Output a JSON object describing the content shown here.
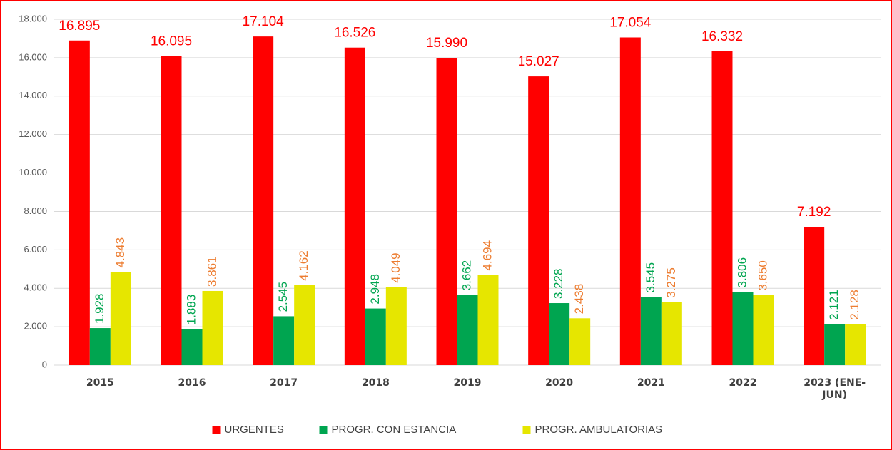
{
  "chart_data": {
    "type": "bar",
    "categories": [
      "2015",
      "2016",
      "2017",
      "2018",
      "2019",
      "2020",
      "2021",
      "2022",
      "2023 (ENE-JUN)"
    ],
    "series": [
      {
        "name": "URGENTES",
        "color": "#ff0000",
        "label_color": "#ff0000",
        "values": [
          16895,
          16095,
          17104,
          16526,
          15990,
          15027,
          17054,
          16332,
          7192
        ],
        "value_labels": [
          "16.895",
          "16.095",
          "17.104",
          "16.526",
          "15.990",
          "15.027",
          "17.054",
          "16.332",
          "7.192"
        ]
      },
      {
        "name": "PROGR. CON ESTANCIA",
        "color": "#00a550",
        "label_color": "#00a550",
        "values": [
          1928,
          1883,
          2545,
          2948,
          3662,
          3228,
          3545,
          3806,
          2121
        ],
        "value_labels": [
          "1.928",
          "1.883",
          "2.545",
          "2.948",
          "3.662",
          "3.228",
          "3.545",
          "3.806",
          "2.121"
        ]
      },
      {
        "name": "PROGR. AMBULATORIAS",
        "color": "#e6e600",
        "label_color": "#ed7d31",
        "values": [
          4843,
          3861,
          4162,
          4049,
          4694,
          2438,
          3275,
          3650,
          2128
        ],
        "value_labels": [
          "4.843",
          "3.861",
          "4.162",
          "4.049",
          "4.694",
          "2.438",
          "3.275",
          "3.650",
          "2.128"
        ]
      }
    ],
    "ylim": [
      0,
      18000
    ],
    "yticks": [
      0,
      {
        "value": 2000,
        "label": "2.000"
      },
      {
        "value": 4000,
        "label": "4.000"
      },
      {
        "value": 6000,
        "label": "6.000"
      },
      {
        "value": 8000,
        "label": "8.000"
      },
      {
        "value": 10000,
        "label": "10.000"
      },
      {
        "value": 12000,
        "label": "12.000"
      },
      {
        "value": 14000,
        "label": "14.000"
      },
      {
        "value": 16000,
        "label": "16.000"
      },
      {
        "value": 18000,
        "label": "18.000"
      }
    ],
    "grid": true,
    "legend": "bottom"
  }
}
